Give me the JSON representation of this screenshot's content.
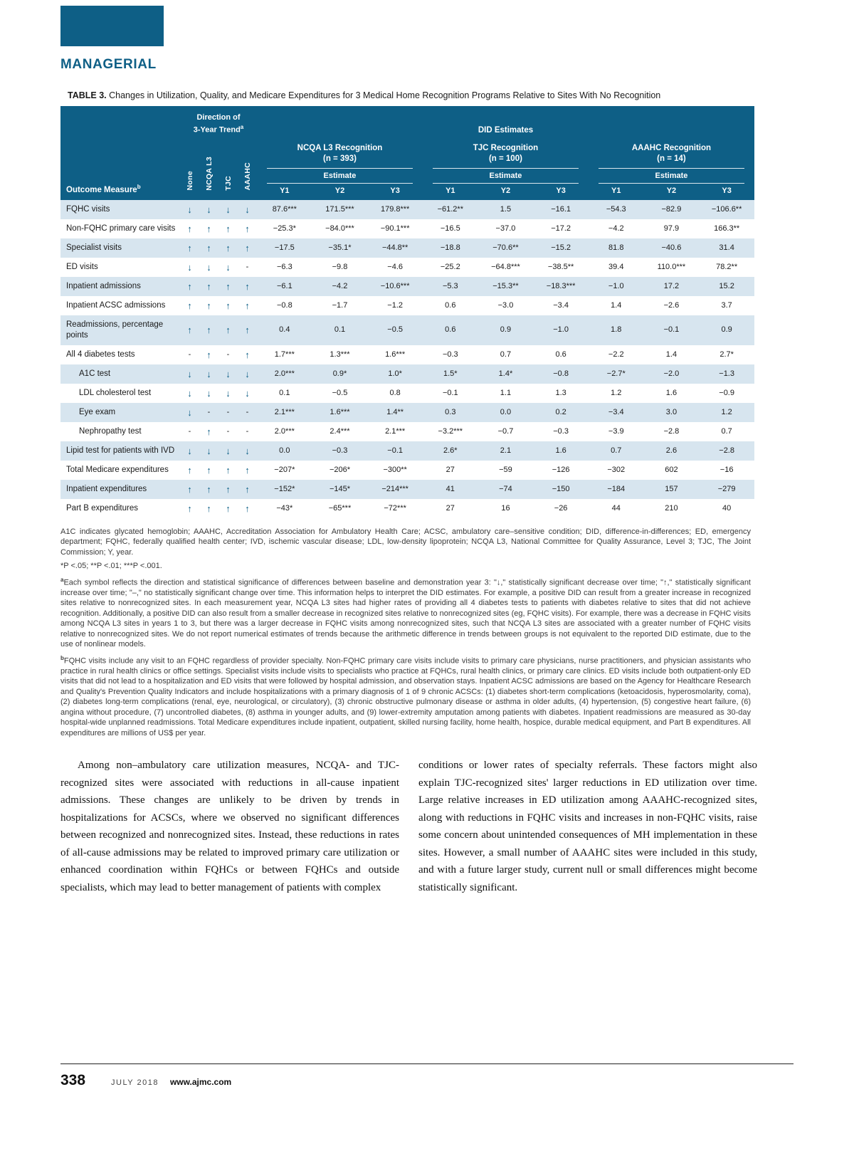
{
  "colors": {
    "accent": "#0e5f86",
    "row_shade": "#d7e5ef"
  },
  "page": {
    "section_label": "MANAGERIAL",
    "footer": {
      "page_number": "338",
      "issue": "JULY 2018",
      "website": "www.ajmc.com"
    }
  },
  "table": {
    "label": "TABLE 3.",
    "title": " Changes in Utilization, Quality, and Medicare Expenditures for 3 Medical Home Recognition Programs Relative to Sites With No Recognition",
    "header": {
      "direction_line1": "Direction of",
      "direction_line2": "3-Year Trend",
      "direction_sup": "a",
      "did_estimates": "DID Estimates",
      "outcome_measure": "Outcome Measure",
      "outcome_sup": "b",
      "estimate": "Estimate",
      "trend_columns": [
        "None",
        "NCQA L3",
        "TJC",
        "AAAHC"
      ],
      "years": [
        "Y1",
        "Y2",
        "Y3"
      ],
      "groups": [
        {
          "name": "NCQA L3 Recognition",
          "n": "(n = 393)"
        },
        {
          "name": "TJC Recognition",
          "n": "(n = 100)"
        },
        {
          "name": "AAAHC Recognition",
          "n": "(n = 14)"
        }
      ]
    },
    "rows": [
      {
        "label": "FQHC visits",
        "indent": false,
        "trend": [
          "↓",
          "↓",
          "↓",
          "↓"
        ],
        "values": [
          "87.6***",
          "171.5***",
          "179.8***",
          "−61.2**",
          "1.5",
          "−16.1",
          "−54.3",
          "−82.9",
          "−106.6**"
        ]
      },
      {
        "label": "Non-FQHC primary care visits",
        "indent": false,
        "trend": [
          "↑",
          "↑",
          "↑",
          "↑"
        ],
        "values": [
          "−25.3*",
          "−84.0***",
          "−90.1***",
          "−16.5",
          "−37.0",
          "−17.2",
          "−4.2",
          "97.9",
          "166.3**"
        ]
      },
      {
        "label": "Specialist visits",
        "indent": false,
        "trend": [
          "↑",
          "↑",
          "↑",
          "↑"
        ],
        "values": [
          "−17.5",
          "−35.1*",
          "−44.8**",
          "−18.8",
          "−70.6**",
          "−15.2",
          "81.8",
          "−40.6",
          "31.4"
        ]
      },
      {
        "label": "ED visits",
        "indent": false,
        "trend": [
          "↓",
          "↓",
          "↓",
          "-"
        ],
        "values": [
          "−6.3",
          "−9.8",
          "−4.6",
          "−25.2",
          "−64.8***",
          "−38.5**",
          "39.4",
          "110.0***",
          "78.2**"
        ]
      },
      {
        "label": "Inpatient admissions",
        "indent": false,
        "trend": [
          "↑",
          "↑",
          "↑",
          "↑"
        ],
        "values": [
          "−6.1",
          "−4.2",
          "−10.6***",
          "−5.3",
          "−15.3**",
          "−18.3***",
          "−1.0",
          "17.2",
          "15.2"
        ]
      },
      {
        "label": "Inpatient ACSC admissions",
        "indent": false,
        "trend": [
          "↑",
          "↑",
          "↑",
          "↑"
        ],
        "values": [
          "−0.8",
          "−1.7",
          "−1.2",
          "0.6",
          "−3.0",
          "−3.4",
          "1.4",
          "−2.6",
          "3.7"
        ]
      },
      {
        "label": "Readmissions, percentage points",
        "indent": false,
        "trend": [
          "↑",
          "↑",
          "↑",
          "↑"
        ],
        "values": [
          "0.4",
          "0.1",
          "−0.5",
          "0.6",
          "0.9",
          "−1.0",
          "1.8",
          "−0.1",
          "0.9"
        ]
      },
      {
        "label": "All 4 diabetes tests",
        "indent": false,
        "trend": [
          "-",
          "↑",
          "-",
          "↑"
        ],
        "values": [
          "1.7***",
          "1.3***",
          "1.6***",
          "−0.3",
          "0.7",
          "0.6",
          "−2.2",
          "1.4",
          "2.7*"
        ]
      },
      {
        "label": "A1C test",
        "indent": true,
        "trend": [
          "↓",
          "↓",
          "↓",
          "↓"
        ],
        "values": [
          "2.0***",
          "0.9*",
          "1.0*",
          "1.5*",
          "1.4*",
          "−0.8",
          "−2.7*",
          "−2.0",
          "−1.3"
        ]
      },
      {
        "label": "LDL cholesterol test",
        "indent": true,
        "trend": [
          "↓",
          "↓",
          "↓",
          "↓"
        ],
        "values": [
          "0.1",
          "−0.5",
          "0.8",
          "−0.1",
          "1.1",
          "1.3",
          "1.2",
          "1.6",
          "−0.9"
        ]
      },
      {
        "label": "Eye exam",
        "indent": true,
        "trend": [
          "↓",
          "-",
          "-",
          "-"
        ],
        "values": [
          "2.1***",
          "1.6***",
          "1.4**",
          "0.3",
          "0.0",
          "0.2",
          "−3.4",
          "3.0",
          "1.2"
        ]
      },
      {
        "label": "Nephropathy test",
        "indent": true,
        "trend": [
          "-",
          "↑",
          "-",
          "-"
        ],
        "values": [
          "2.0***",
          "2.4***",
          "2.1***",
          "−3.2***",
          "−0.7",
          "−0.3",
          "−3.9",
          "−2.8",
          "0.7"
        ]
      },
      {
        "label": "Lipid test for patients with IVD",
        "indent": false,
        "trend": [
          "↓",
          "↓",
          "↓",
          "↓"
        ],
        "values": [
          "0.0",
          "−0.3",
          "−0.1",
          "2.6*",
          "2.1",
          "1.6",
          "0.7",
          "2.6",
          "−2.8"
        ]
      },
      {
        "label": "Total Medicare expenditures",
        "indent": false,
        "trend": [
          "↑",
          "↑",
          "↑",
          "↑"
        ],
        "values": [
          "−207*",
          "−206*",
          "−300**",
          "27",
          "−59",
          "−126",
          "−302",
          "602",
          "−16"
        ]
      },
      {
        "label": "Inpatient expenditures",
        "indent": false,
        "trend": [
          "↑",
          "↑",
          "↑",
          "↑"
        ],
        "values": [
          "−152*",
          "−145*",
          "−214***",
          "41",
          "−74",
          "−150",
          "−184",
          "157",
          "−279"
        ]
      },
      {
        "label": "Part B expenditures",
        "indent": false,
        "trend": [
          "↑",
          "↑",
          "↑",
          "↑"
        ],
        "values": [
          "−43*",
          "−65***",
          "−72***",
          "27",
          "16",
          "−26",
          "44",
          "210",
          "40"
        ]
      }
    ]
  },
  "footnotes": {
    "abbreviations": "A1C indicates glycated hemoglobin; AAAHC, Accreditation Association for Ambulatory Health Care; ACSC, ambulatory care–sensitive condition; DID, difference-in-differences; ED, emergency department; FQHC, federally qualified health center; IVD, ischemic vascular disease; LDL, low-density lipoprotein; NCQA L3, National Committee for Quality Assurance, Level 3; TJC, The Joint Commission; Y, year.",
    "pvalues": "*P <.05; **P <.01; ***P <.001.",
    "note_a_marker": "a",
    "note_a": "Each symbol reflects the direction and statistical significance of differences between baseline and demonstration year 3: \"↓,\" statistically significant decrease over time; \"↑,\" statistically significant increase over time; \"–,\" no statistically significant change over time. This information helps to interpret the DID estimates. For example, a positive DID can result from a greater increase in recognized sites relative to nonrecognized sites. In each measurement year, NCQA L3 sites had higher rates of providing all 4 diabetes tests to patients with diabetes relative to sites that did not achieve recognition. Additionally, a positive DID can also result from a smaller decrease in recognized sites relative to nonrecognized sites (eg, FQHC visits). For example, there was a decrease in FQHC visits among NCQA L3 sites in years 1 to 3, but there was a larger decrease in FQHC visits among nonrecognized sites, such that NCQA L3 sites are associated with a greater number of FQHC visits relative to nonrecognized sites. We do not report numerical estimates of trends because the arithmetic difference in trends between groups is not equivalent to the reported DID estimate, due to the use of nonlinear models.",
    "note_b_marker": "b",
    "note_b": "FQHC visits include any visit to an FQHC regardless of provider specialty. Non-FQHC primary care visits include visits to primary care physicians, nurse practitioners, and physician assistants who practice in rural health clinics or office settings. Specialist visits include visits to specialists who practice at FQHCs, rural health clinics, or primary care clinics. ED visits include both outpatient-only ED visits that did not lead to a hospitalization and ED visits that were followed by hospital admission, and observation stays. Inpatient ACSC admissions are based on the Agency for Healthcare Research and Quality's Prevention Quality Indicators and include hospitalizations with a primary diagnosis of 1 of 9 chronic ACSCs: (1) diabetes short-term complications (ketoacidosis, hyperosmolarity, coma), (2) diabetes long-term complications (renal, eye, neurological, or circulatory), (3) chronic obstructive pulmonary disease or asthma in older adults, (4) hypertension, (5) congestive heart failure, (6) angina without procedure, (7) uncontrolled diabetes, (8) asthma in younger adults, and (9) lower-extremity amputation among patients with diabetes. Inpatient readmissions are measured as 30-day hospital-wide unplanned readmissions. Total Medicare expenditures include inpatient, outpatient, skilled nursing facility, home health, hospice, durable medical equipment, and Part B expenditures. All expenditures are millions of US$ per year."
  },
  "body": {
    "left_column": "Among non–ambulatory care utilization measures, NCQA- and TJC-recognized sites were associated with reductions in all-cause inpatient admissions. These changes are unlikely to be driven by trends in hospitalizations for ACSCs, where we observed no significant differences between recognized and nonrecognized sites. Instead, these reductions in rates of all-cause admissions may be related to improved primary care utilization or enhanced coordination within FQHCs or between FQHCs and outside specialists, which may lead to better management of patients with complex",
    "right_column": "conditions or lower rates of specialty referrals. These factors might also explain TJC-recognized sites' larger reductions in ED utilization over time. Large relative increases in ED utilization among AAAHC-recognized sites, along with reductions in FQHC visits and increases in non-FQHC visits, raise some concern about unintended consequences of MH implementation in these sites. However, a small number of AAAHC sites were included in this study, and with a future larger study, current null or small differences might become statistically significant."
  }
}
